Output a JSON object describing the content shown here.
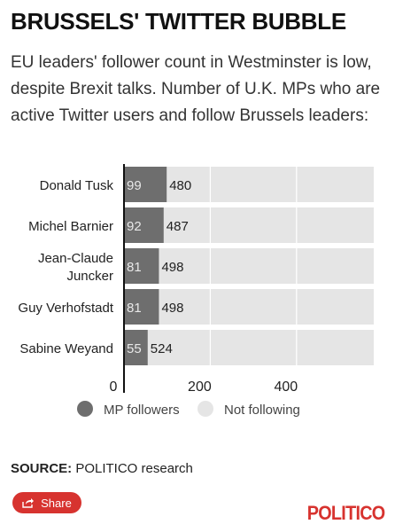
{
  "header": {
    "title": "BRUSSELS' TWITTER BUBBLE",
    "subtitle": "EU leaders' follower count in Westminster is low, despite Brexit talks. Number of U.K. MPs who are active Twitter users and follow Brussels leaders:"
  },
  "chart_data": {
    "type": "bar",
    "orientation": "horizontal",
    "stacked": true,
    "categories": [
      "Donald Tusk",
      "Michel Barnier",
      "Jean-Claude Juncker",
      "Guy Verhofstadt",
      "Sabine Weyand"
    ],
    "series": [
      {
        "name": "MP followers",
        "values": [
          99,
          92,
          81,
          81,
          55
        ],
        "color": "#6e6e6e"
      },
      {
        "name": "Not following",
        "values": [
          480,
          487,
          498,
          498,
          524
        ],
        "color": "#e5e5e5"
      }
    ],
    "x_ticks": [
      "0",
      "200",
      "400"
    ],
    "xlim": [
      0,
      579
    ],
    "grid": true,
    "legend_position": "bottom"
  },
  "footer": {
    "source_label": "SOURCE:",
    "source_text": " POLITICO research",
    "share_label": "Share",
    "logo": "POLITICO"
  },
  "colors": {
    "accent": "#d7332f",
    "dark_bar": "#6e6e6e",
    "light_bar": "#e5e5e5"
  }
}
